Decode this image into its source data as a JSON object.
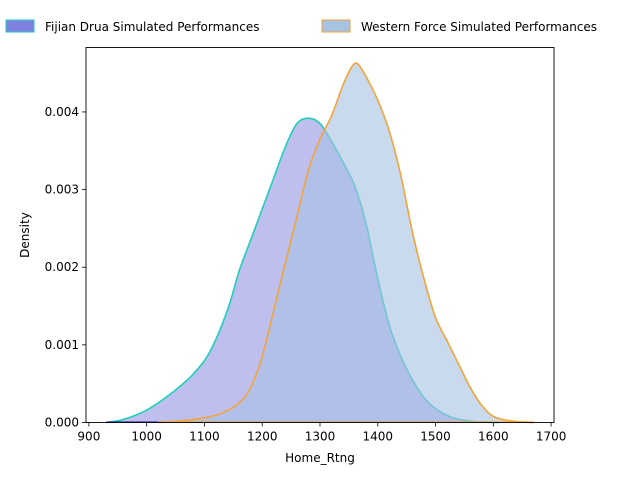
{
  "chart_data": {
    "type": "area",
    "title": "",
    "xlabel": "Home_Rtng",
    "ylabel": "Density",
    "xlim": [
      895,
      1705
    ],
    "ylim": [
      0,
      0.00483
    ],
    "xticks": [
      900,
      1000,
      1100,
      1200,
      1300,
      1400,
      1500,
      1600,
      1700
    ],
    "xtick_labels": [
      "900",
      "1000",
      "1100",
      "1200",
      "1300",
      "1400",
      "1500",
      "1600",
      "1700"
    ],
    "yticks": [
      0,
      0.001,
      0.002,
      0.003,
      0.004
    ],
    "ytick_labels": [
      "0.000",
      "0.001",
      "0.002",
      "0.003",
      "0.004"
    ],
    "grid": false,
    "legend_position": "top",
    "series": [
      {
        "name": "Fijian Drua Simulated Performances",
        "fill": "#8080e0",
        "line": "#1fcfb8",
        "points": [
          [
            930,
            0.0
          ],
          [
            960,
            4e-05
          ],
          [
            1000,
            0.00016
          ],
          [
            1040,
            0.00036
          ],
          [
            1080,
            0.00062
          ],
          [
            1110,
            0.00092
          ],
          [
            1140,
            0.00145
          ],
          [
            1160,
            0.00195
          ],
          [
            1180,
            0.00235
          ],
          [
            1200,
            0.00275
          ],
          [
            1220,
            0.00315
          ],
          [
            1240,
            0.00355
          ],
          [
            1260,
            0.00385
          ],
          [
            1280,
            0.00392
          ],
          [
            1300,
            0.00385
          ],
          [
            1320,
            0.00362
          ],
          [
            1340,
            0.00335
          ],
          [
            1360,
            0.00305
          ],
          [
            1380,
            0.00255
          ],
          [
            1400,
            0.00185
          ],
          [
            1420,
            0.00125
          ],
          [
            1440,
            0.00085
          ],
          [
            1460,
            0.00055
          ],
          [
            1480,
            0.00032
          ],
          [
            1500,
            0.00018
          ],
          [
            1530,
            6e-05
          ],
          [
            1570,
            1e-05
          ],
          [
            1610,
            0.0
          ]
        ]
      },
      {
        "name": "Western Force Simulated Performances",
        "fill": "#a7c2e3",
        "line": "#f2a43a",
        "points": [
          [
            1020,
            0.0
          ],
          [
            1060,
            2e-05
          ],
          [
            1100,
            6e-05
          ],
          [
            1130,
            0.00012
          ],
          [
            1160,
            0.00025
          ],
          [
            1180,
            0.00045
          ],
          [
            1200,
            0.00085
          ],
          [
            1220,
            0.00145
          ],
          [
            1240,
            0.00205
          ],
          [
            1260,
            0.00265
          ],
          [
            1280,
            0.00325
          ],
          [
            1300,
            0.00365
          ],
          [
            1320,
            0.00395
          ],
          [
            1340,
            0.00435
          ],
          [
            1355,
            0.00458
          ],
          [
            1365,
            0.00462
          ],
          [
            1380,
            0.00445
          ],
          [
            1400,
            0.00415
          ],
          [
            1420,
            0.00375
          ],
          [
            1440,
            0.00318
          ],
          [
            1460,
            0.00245
          ],
          [
            1480,
            0.00185
          ],
          [
            1500,
            0.00135
          ],
          [
            1520,
            0.00105
          ],
          [
            1540,
            0.00075
          ],
          [
            1560,
            0.00045
          ],
          [
            1580,
            0.00022
          ],
          [
            1600,
            8e-05
          ],
          [
            1630,
            2e-05
          ],
          [
            1670,
            0.0
          ]
        ]
      }
    ]
  }
}
